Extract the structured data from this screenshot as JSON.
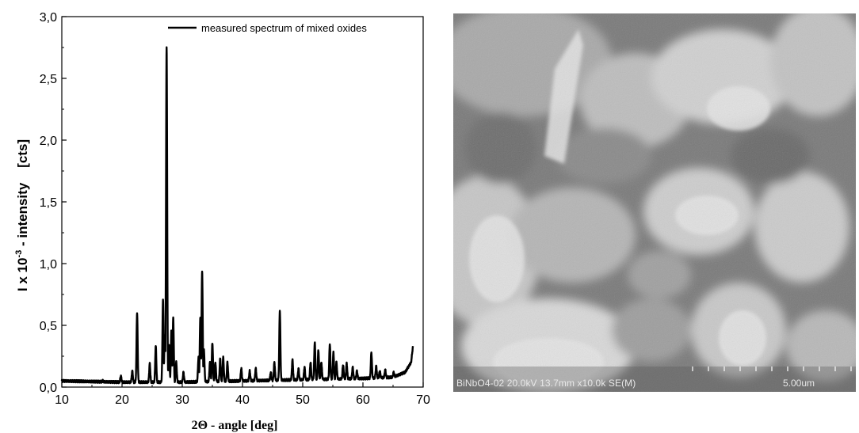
{
  "chart_data": {
    "type": "line",
    "title": "",
    "xlabel": "2Θ - angle [deg]",
    "ylabel_base": "I x 10",
    "ylabel_exp": "-3",
    "ylabel_rest": " - intensity    [cts]",
    "xlim": [
      10,
      70
    ],
    "ylim": [
      0,
      3
    ],
    "xticks": [
      "10",
      "20",
      "30",
      "40",
      "50",
      "60",
      "70"
    ],
    "yticks": [
      "0,0",
      "0,5",
      "1,0",
      "1,5",
      "2,0",
      "2,5",
      "3,0"
    ],
    "legend_position": "top-right",
    "series": [
      {
        "name": "measured spectrum of mixed oxides",
        "baseline": [
          [
            10,
            0.05
          ],
          [
            20,
            0.04
          ],
          [
            30,
            0.04
          ],
          [
            40,
            0.05
          ],
          [
            50,
            0.06
          ],
          [
            60,
            0.07
          ],
          [
            65,
            0.08
          ],
          [
            67,
            0.12
          ],
          [
            68,
            0.2
          ],
          [
            68.3,
            0.33
          ]
        ],
        "peaks": [
          [
            12.5,
            0.04
          ],
          [
            16.8,
            0.05
          ],
          [
            19.8,
            0.09
          ],
          [
            21.7,
            0.13
          ],
          [
            22.5,
            0.6
          ],
          [
            24.6,
            0.19
          ],
          [
            25.6,
            0.33
          ],
          [
            26.8,
            0.7
          ],
          [
            27.1,
            0.42
          ],
          [
            27.4,
            2.76
          ],
          [
            27.8,
            0.34
          ],
          [
            28.2,
            0.46
          ],
          [
            28.5,
            0.56
          ],
          [
            29.0,
            0.2
          ],
          [
            30.2,
            0.12
          ],
          [
            32.7,
            0.24
          ],
          [
            33.0,
            0.57
          ],
          [
            33.3,
            0.94
          ],
          [
            33.6,
            0.3
          ],
          [
            34.6,
            0.2
          ],
          [
            35.0,
            0.36
          ],
          [
            35.5,
            0.2
          ],
          [
            36.3,
            0.23
          ],
          [
            36.8,
            0.24
          ],
          [
            37.5,
            0.2
          ],
          [
            39.8,
            0.15
          ],
          [
            41.2,
            0.13
          ],
          [
            42.2,
            0.15
          ],
          [
            44.7,
            0.12
          ],
          [
            45.3,
            0.2
          ],
          [
            46.2,
            0.62
          ],
          [
            48.3,
            0.22
          ],
          [
            49.3,
            0.15
          ],
          [
            50.3,
            0.16
          ],
          [
            51.3,
            0.2
          ],
          [
            52.0,
            0.36
          ],
          [
            52.6,
            0.3
          ],
          [
            53.1,
            0.2
          ],
          [
            54.5,
            0.35
          ],
          [
            55.1,
            0.28
          ],
          [
            55.6,
            0.2
          ],
          [
            56.7,
            0.18
          ],
          [
            57.3,
            0.19
          ],
          [
            58.3,
            0.16
          ],
          [
            59.0,
            0.13
          ],
          [
            61.4,
            0.28
          ],
          [
            62.2,
            0.17
          ],
          [
            62.8,
            0.13
          ],
          [
            63.7,
            0.14
          ],
          [
            65.1,
            0.12
          ]
        ]
      }
    ]
  },
  "sem": {
    "info": "BiNbO4-02 20.0kV 13.7mm x10.0k SE(M)",
    "scale_label": "5.00um"
  }
}
